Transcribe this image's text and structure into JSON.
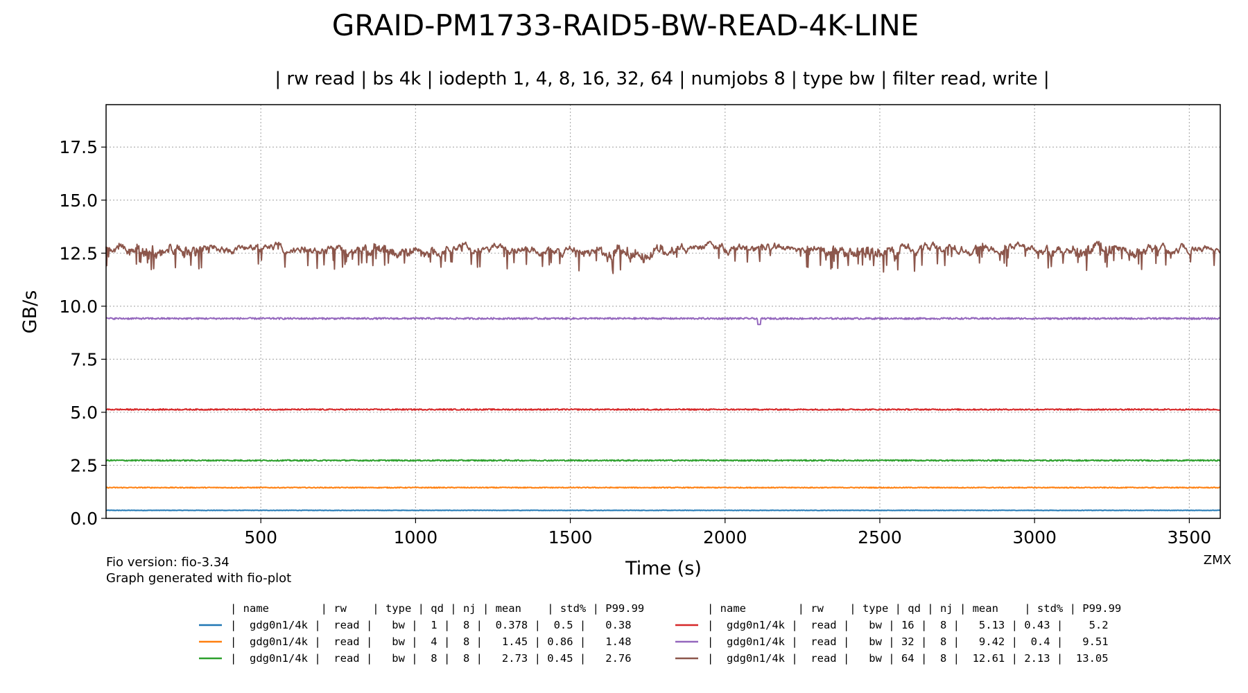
{
  "chart_data": {
    "type": "line",
    "title": "GRAID-PM1733-RAID5-BW-READ-4K-LINE",
    "subtitle": "| rw read | bs 4k | iodepth 1, 4, 8, 16, 32, 64 | numjobs 8 | type bw | filter read, write |",
    "xlabel": "Time (s)",
    "ylabel": "GB/s",
    "xlim": [
      0,
      3600
    ],
    "ylim": [
      0,
      19.5
    ],
    "x_ticks": [
      "500",
      "1000",
      "1500",
      "2000",
      "2500",
      "3000",
      "3500"
    ],
    "y_ticks": [
      "0.0",
      "2.5",
      "5.0",
      "7.5",
      "10.0",
      "12.5",
      "15.0",
      "17.5"
    ],
    "grid": true,
    "legend_header": "| name        | rw    | type | qd | nj | mean    | std% | P99.99",
    "series": [
      {
        "color": "#1f77b4",
        "qd": 1,
        "mean": 0.378,
        "amp": 0.01,
        "row": "|  gdg0n1/4k |  read |   bw |  1 |  8 |  0.378 |  0.5 |   0.38"
      },
      {
        "color": "#ff7f0e",
        "qd": 4,
        "mean": 1.45,
        "amp": 0.02,
        "row": "|  gdg0n1/4k |  read |   bw |  4 |  8 |   1.45 | 0.86 |   1.48"
      },
      {
        "color": "#2ca02c",
        "qd": 8,
        "mean": 2.73,
        "amp": 0.03,
        "row": "|  gdg0n1/4k |  read |   bw |  8 |  8 |   2.73 | 0.45 |   2.76"
      },
      {
        "color": "#d62728",
        "qd": 16,
        "mean": 5.13,
        "amp": 0.03,
        "row": "|  gdg0n1/4k |  read |   bw | 16 |  8 |   5.13 | 0.43 |    5.2"
      },
      {
        "color": "#9467bd",
        "qd": 32,
        "mean": 9.42,
        "amp": 0.04,
        "row": "|  gdg0n1/4k |  read |   bw | 32 |  8 |   9.42 |  0.4 |   9.51"
      },
      {
        "color": "#8c564b",
        "qd": 64,
        "mean": 12.61,
        "amp": 0.27,
        "row": "|  gdg0n1/4k |  read |   bw | 64 |  8 |  12.61 | 2.13 |  13.05"
      }
    ]
  },
  "footer": {
    "fio_version": "Fio version: fio-3.34",
    "generated": "Graph generated with fio-plot",
    "watermark": "ZMX"
  }
}
